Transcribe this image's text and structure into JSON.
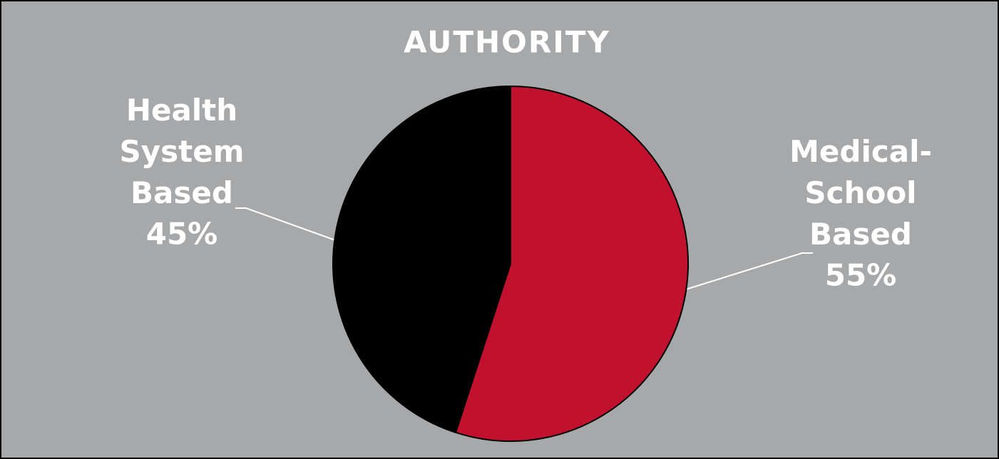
{
  "chart_data": {
    "type": "pie",
    "title": "AUTHORITY",
    "categories": [
      "Medical-School Based",
      "Health System Based"
    ],
    "values": [
      55,
      45
    ],
    "value_labels": [
      "55%",
      "45%"
    ],
    "colors": [
      "#c1112f",
      "#000000"
    ]
  }
}
